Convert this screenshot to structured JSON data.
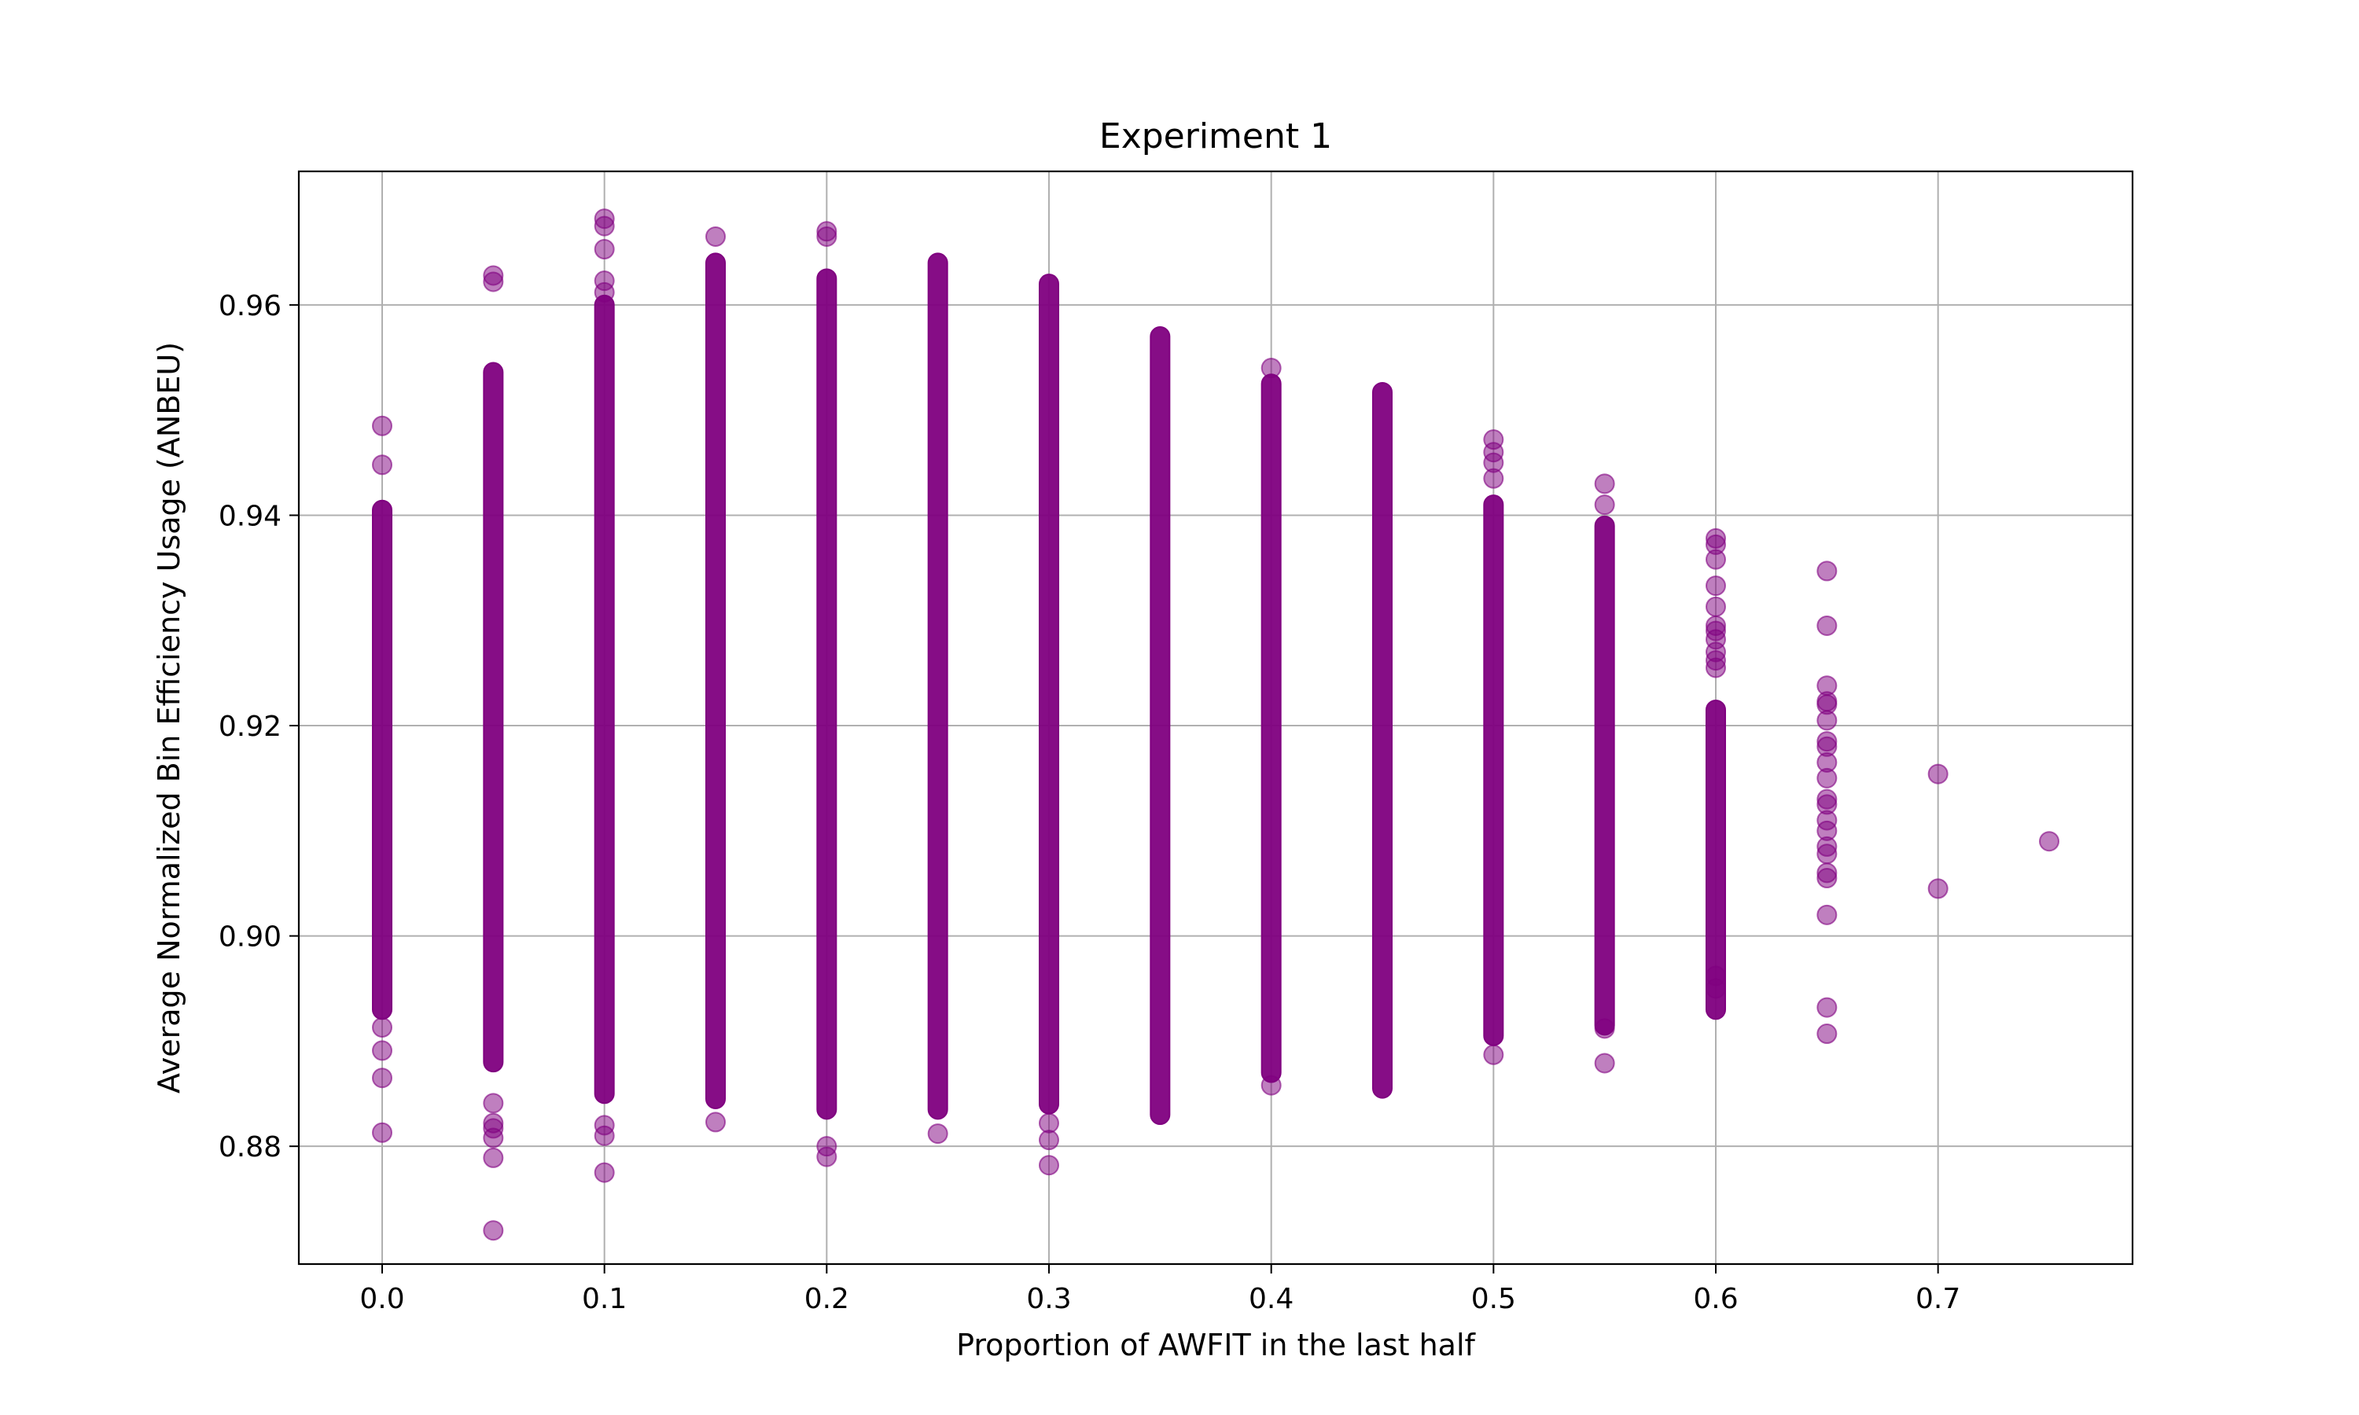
{
  "chart_data": {
    "type": "scatter",
    "title": "Experiment 1",
    "xlabel": "Proportion of AWFIT in the last half",
    "ylabel": "Average Normalized Bin Efficiency Usage (ANBEU)",
    "xlim": [
      -0.0375,
      0.7875
    ],
    "ylim": [
      0.8688,
      0.9727
    ],
    "x_ticks": [
      0.0,
      0.1,
      0.2,
      0.3,
      0.4,
      0.5,
      0.6,
      0.7
    ],
    "x_tick_labels": [
      "0.0",
      "0.1",
      "0.2",
      "0.3",
      "0.4",
      "0.5",
      "0.6",
      "0.7"
    ],
    "y_ticks": [
      0.88,
      0.9,
      0.92,
      0.94,
      0.96
    ],
    "y_tick_labels": [
      "0.88",
      "0.90",
      "0.92",
      "0.94",
      "0.96"
    ],
    "grid": true,
    "marker_color": "#800080",
    "marker_alpha": 0.5,
    "groups": [
      {
        "x": 0.0,
        "band": [
          0.893,
          0.9405
        ],
        "outliers": [
          0.9485,
          0.9448,
          0.8913,
          0.8891,
          0.8865,
          0.8813
        ]
      },
      {
        "x": 0.05,
        "band": [
          0.888,
          0.9536
        ],
        "outliers": [
          0.9628,
          0.9622,
          0.8841,
          0.8822,
          0.8817,
          0.8808,
          0.8789,
          0.872
        ]
      },
      {
        "x": 0.1,
        "band": [
          0.885,
          0.96
        ],
        "outliers": [
          0.9682,
          0.9675,
          0.9653,
          0.9623,
          0.9612,
          0.882,
          0.881,
          0.8775
        ]
      },
      {
        "x": 0.15,
        "band": [
          0.8845,
          0.964
        ],
        "outliers": [
          0.9665,
          0.8823
        ]
      },
      {
        "x": 0.2,
        "band": [
          0.8835,
          0.9625
        ],
        "outliers": [
          0.967,
          0.9665,
          0.88,
          0.879
        ]
      },
      {
        "x": 0.25,
        "band": [
          0.8835,
          0.964
        ],
        "outliers": [
          0.8812
        ]
      },
      {
        "x": 0.3,
        "band": [
          0.884,
          0.962
        ],
        "outliers": [
          0.8822,
          0.8806,
          0.8782
        ]
      },
      {
        "x": 0.35,
        "band": [
          0.883,
          0.957
        ],
        "outliers": []
      },
      {
        "x": 0.4,
        "band": [
          0.887,
          0.9525
        ],
        "outliers": [
          0.954,
          0.8858
        ]
      },
      {
        "x": 0.45,
        "band": [
          0.8855,
          0.9517
        ],
        "outliers": []
      },
      {
        "x": 0.5,
        "band": [
          0.8905,
          0.941
        ],
        "outliers": [
          0.9472,
          0.946,
          0.945,
          0.9435,
          0.8887
        ]
      },
      {
        "x": 0.55,
        "band": [
          0.8915,
          0.939
        ],
        "outliers": [
          0.943,
          0.941,
          0.8912,
          0.8879
        ]
      },
      {
        "x": 0.6,
        "band": [
          0.893,
          0.9215
        ],
        "outliers": [
          0.9378,
          0.9372,
          0.9358,
          0.9333,
          0.9313,
          0.9295,
          0.929,
          0.9282,
          0.927,
          0.9262,
          0.9255,
          0.8962,
          0.895
        ]
      },
      {
        "x": 0.65,
        "band": null,
        "outliers": [
          0.9347,
          0.9295,
          0.9238,
          0.9223,
          0.922,
          0.9205,
          0.9185,
          0.918,
          0.9165,
          0.915,
          0.913,
          0.9125,
          0.911,
          0.91,
          0.9085,
          0.9078,
          0.906,
          0.9055,
          0.902,
          0.8932,
          0.8907
        ]
      },
      {
        "x": 0.7,
        "band": null,
        "outliers": [
          0.9154,
          0.9045
        ]
      },
      {
        "x": 0.75,
        "band": null,
        "outliers": [
          0.909
        ]
      }
    ]
  }
}
